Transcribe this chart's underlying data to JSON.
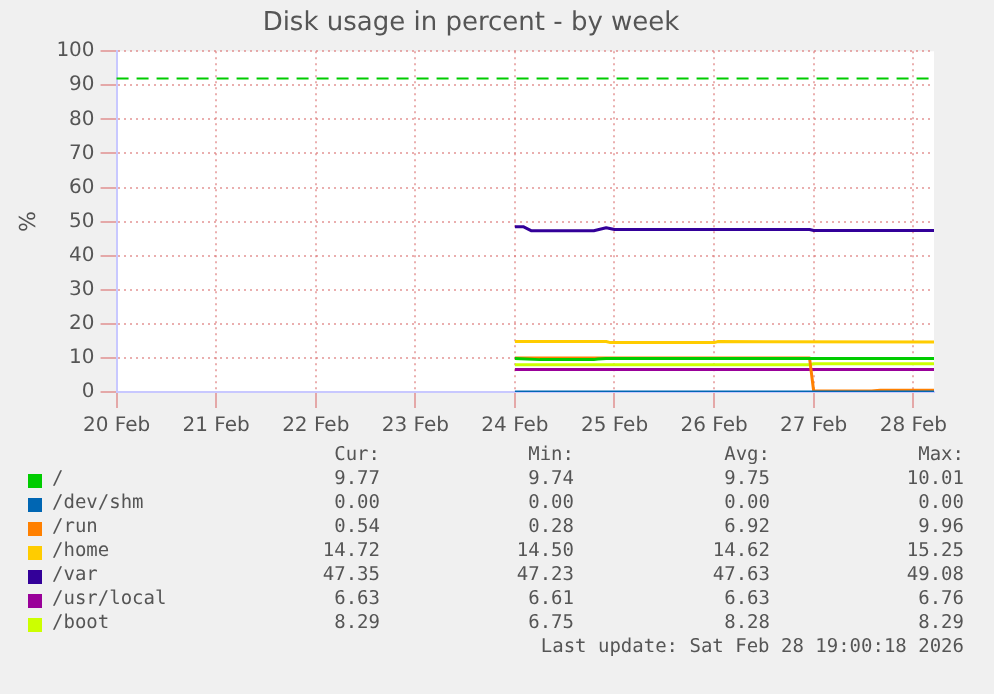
{
  "chart_data": {
    "type": "line",
    "title": "Disk usage in percent - by week",
    "ylabel": "%",
    "xlim": [
      "2026-02-20",
      "2026-02-28T05:00"
    ],
    "xticks": [
      {
        "value": "2026-02-20",
        "label": "20 Feb"
      },
      {
        "value": "2026-02-21",
        "label": "21 Feb"
      },
      {
        "value": "2026-02-22",
        "label": "22 Feb"
      },
      {
        "value": "2026-02-23",
        "label": "23 Feb"
      },
      {
        "value": "2026-02-24",
        "label": "24 Feb"
      },
      {
        "value": "2026-02-25",
        "label": "25 Feb"
      },
      {
        "value": "2026-02-26",
        "label": "26 Feb"
      },
      {
        "value": "2026-02-27",
        "label": "27 Feb"
      },
      {
        "value": "2026-02-28",
        "label": "28 Feb"
      }
    ],
    "ylim": [
      0,
      100
    ],
    "yticks": [
      0,
      10,
      20,
      30,
      40,
      50,
      60,
      70,
      80,
      90,
      100
    ],
    "grid": true,
    "legend": "bottom",
    "line_style": "solid",
    "marker": "none",
    "series": [
      {
        "name": "/",
        "color": "#00cc00",
        "x": [
          "2026-02-24T00:00",
          "2026-02-24T06:00",
          "2026-02-24T19:00",
          "2026-02-24T20:00",
          "2026-02-24T22:00",
          "2026-02-26T23:00",
          "2026-02-27T00:00",
          "2026-02-28T05:00"
        ],
        "values": [
          9.8,
          9.5,
          9.5,
          9.7,
          9.8,
          9.8,
          9.8,
          9.8
        ]
      },
      {
        "name": "/dev/shm",
        "color": "#0066b3",
        "x": [
          "2026-02-24T00:00",
          "2026-02-28T05:00"
        ],
        "values": [
          0,
          0
        ]
      },
      {
        "name": "/run",
        "color": "#ff8000",
        "x": [
          "2026-02-24T00:00",
          "2026-02-26T23:00",
          "2026-02-27T00:00",
          "2026-02-27T14:00",
          "2026-02-27T16:00",
          "2026-02-28T05:00"
        ],
        "values": [
          10,
          10,
          0.3,
          0.3,
          0.5,
          0.5
        ]
      },
      {
        "name": "/home",
        "color": "#ffcc00",
        "x": [
          "2026-02-24T00:00",
          "2026-02-24T22:00",
          "2026-02-24T23:00",
          "2026-02-26T00:00",
          "2026-02-26T01:00",
          "2026-02-28T05:00"
        ],
        "values": [
          14.8,
          14.8,
          14.5,
          14.5,
          14.8,
          14.7
        ]
      },
      {
        "name": "/var",
        "color": "#330099",
        "x": [
          "2026-02-24T00:00",
          "2026-02-24T02:00",
          "2026-02-24T04:00",
          "2026-02-24T19:00",
          "2026-02-24T22:00",
          "2026-02-25T00:00",
          "2026-02-26T23:00",
          "2026-02-27T00:00",
          "2026-02-28T05:00"
        ],
        "values": [
          48.5,
          48.5,
          47.3,
          47.3,
          48.2,
          47.7,
          47.7,
          47.4,
          47.4
        ]
      },
      {
        "name": "/usr/local",
        "color": "#990099",
        "x": [
          "2026-02-24T00:00",
          "2026-02-28T05:00"
        ],
        "values": [
          6.6,
          6.6
        ]
      },
      {
        "name": "/boot",
        "color": "#ccff00",
        "x": [
          "2026-02-24T00:00",
          "2026-02-26T23:00",
          "2026-02-27T00:00",
          "2026-02-28T05:00"
        ],
        "values": [
          8,
          8,
          8.3,
          8.3
        ]
      }
    ],
    "ref_lines": [
      {
        "axis": "y",
        "value": 92,
        "color": "#00cc00",
        "line_style": "dashed"
      }
    ],
    "annotations": [
      "Cur:",
      "Min:",
      "Avg:",
      "Max:",
      "9.77",
      "9.74",
      "9.75",
      "10.01",
      "0.00",
      "0.00",
      "0.00",
      "0.00",
      "0.54",
      "0.28",
      "6.92",
      "9.96",
      "14.72",
      "14.50",
      "14.62",
      "15.25",
      "47.35",
      "47.23",
      "47.63",
      "49.08",
      "6.63",
      "6.61",
      "6.63",
      "6.76",
      "8.29",
      "6.75",
      "8.28",
      "8.29",
      "Last update: Sat Feb 28 19:00:18 2026"
    ]
  }
}
